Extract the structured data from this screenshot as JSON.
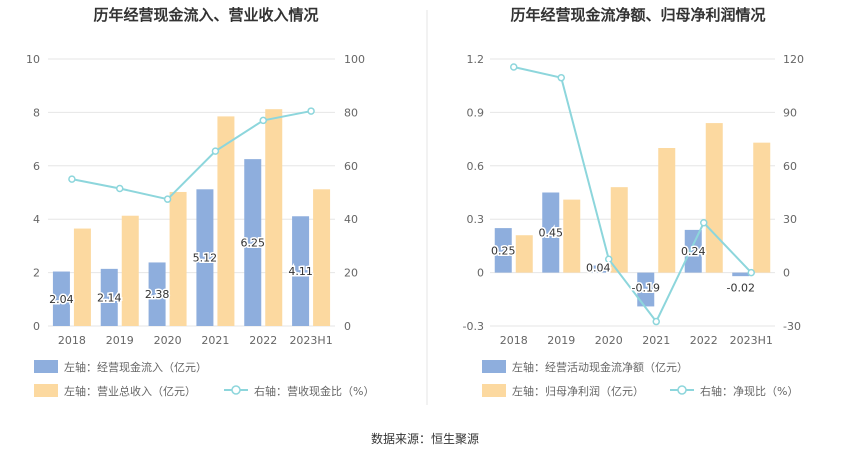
{
  "source": "数据来源：恒生聚源",
  "colors": {
    "bar_left": "#8eaedd",
    "bar_right": "#fcd9a0",
    "line": "#8dd6dc",
    "grid": "#e6e6e6",
    "divider": "#e5e5e5"
  },
  "chart_data": [
    {
      "type": "bar",
      "title": "历年经营现金流入、营业收入情况",
      "categories": [
        "2018",
        "2019",
        "2020",
        "2021",
        "2022",
        "2023H1"
      ],
      "left_axis": {
        "ticks": [
          "0",
          "2",
          "4",
          "6",
          "8",
          "10"
        ],
        "min": 0,
        "max": 10
      },
      "right_axis": {
        "ticks": [
          "0",
          "20",
          "40",
          "60",
          "80",
          "100"
        ],
        "min": 0,
        "max": 100
      },
      "series": [
        {
          "name": "左轴：经营现金流入（亿元）",
          "kind": "bar",
          "axis": "left",
          "values": [
            2.04,
            2.14,
            2.38,
            5.12,
            6.25,
            4.11
          ],
          "labels": [
            "2.04",
            "2.14",
            "2.38",
            "5.12",
            "6.25",
            "4.11"
          ]
        },
        {
          "name": "左轴：营业总收入（亿元）",
          "kind": "bar",
          "axis": "left",
          "values": [
            3.65,
            4.13,
            5.02,
            7.85,
            8.12,
            5.12
          ]
        },
        {
          "name": "右轴：营收现金比（%）",
          "kind": "line",
          "axis": "right",
          "values": [
            55.0,
            51.5,
            47.5,
            65.5,
            77.0,
            80.5
          ]
        }
      ]
    },
    {
      "type": "bar",
      "title": "历年经营现金流净额、归母净利润情况",
      "categories": [
        "2018",
        "2019",
        "2020",
        "2021",
        "2022",
        "2023H1"
      ],
      "left_axis": {
        "ticks": [
          "-0.3",
          "0",
          "0.3",
          "0.6",
          "0.9",
          "1.2"
        ],
        "min": -0.3,
        "max": 1.2
      },
      "right_axis": {
        "ticks": [
          "-30",
          "0",
          "30",
          "60",
          "90",
          "120"
        ],
        "min": -30,
        "max": 120
      },
      "series": [
        {
          "name": "左轴：经营活动现金流净额（亿元）",
          "kind": "bar",
          "axis": "left",
          "values": [
            0.25,
            0.45,
            0.04,
            -0.19,
            0.24,
            -0.02
          ],
          "labels": [
            "0.25",
            "0.45",
            "0.04",
            "-0.19",
            "0.24",
            "-0.02"
          ]
        },
        {
          "name": "左轴：归母净利润（亿元）",
          "kind": "bar",
          "axis": "left",
          "values": [
            0.21,
            0.41,
            0.48,
            0.7,
            0.84,
            0.73
          ]
        },
        {
          "name": "右轴：净现比（%）",
          "kind": "line",
          "axis": "right",
          "values": [
            115.5,
            109.5,
            7.5,
            -27.5,
            28.0,
            0.0
          ]
        }
      ]
    }
  ]
}
